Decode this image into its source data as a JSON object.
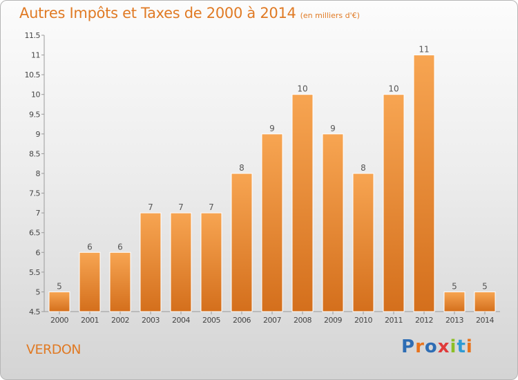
{
  "header": {
    "title": "Autres Impôts et Taxes de 2000 à 2014",
    "unit": "(en milliers d'€)"
  },
  "footer": {
    "city": "VERDON",
    "logo_text": "Proxiti",
    "logo_colors": [
      "#2e6db4",
      "#e8731c",
      "#2e6db4",
      "#e03a3a",
      "#8cbf26",
      "#2e9bd4",
      "#e8731c"
    ]
  },
  "chart_data": {
    "type": "bar",
    "categories": [
      "2000",
      "2001",
      "2002",
      "2003",
      "2004",
      "2005",
      "2006",
      "2007",
      "2008",
      "2009",
      "2010",
      "2011",
      "2012",
      "2013",
      "2014"
    ],
    "values": [
      5,
      6,
      6,
      7,
      7,
      7,
      8,
      9,
      10,
      9,
      8,
      10,
      11,
      5,
      5
    ],
    "ylim": [
      4.5,
      11.5
    ],
    "yticks": [
      "4.5",
      "5",
      "5.5",
      "6",
      "6.5",
      "7",
      "7.5",
      "8",
      "8.5",
      "9",
      "9.5",
      "10",
      "10.5",
      "11",
      "11.5"
    ],
    "bar_color": "#f29a45",
    "bar_color_dark": "#d9731e",
    "grid": false,
    "legend": "none"
  }
}
